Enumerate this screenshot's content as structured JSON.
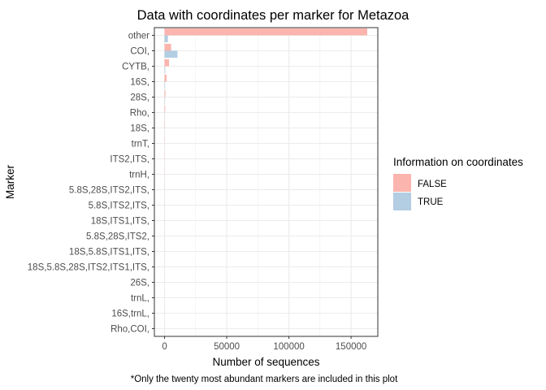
{
  "chart_data": {
    "type": "bar",
    "orientation": "horizontal",
    "position": "dodge",
    "title": "Data with coordinates per marker for Metazoa",
    "xlabel": "Number of sequences",
    "ylabel": "Marker",
    "caption": "*Only the twenty most abundant markers are included in this plot",
    "categories": [
      "other",
      "COI,",
      "CYTB,",
      "16S,",
      "28S,",
      "Rho,",
      "18S,",
      "trnT,",
      "ITS2,ITS,",
      "trnH,",
      "5.8S,28S,ITS2,ITS,",
      "5.8S,ITS2,ITS,",
      "18S,ITS1,ITS,",
      "5.8S,28S,ITS2,",
      "18S,5.8S,ITS1,ITS,",
      "18S,5.8S,28S,ITS2,ITS1,ITS,",
      "26S,",
      "trnL,",
      "16S,trnL,",
      "Rho,COI,"
    ],
    "series": [
      {
        "name": "FALSE",
        "color": "#FBB4AE",
        "values": [
          163000,
          5300,
          3600,
          1600,
          700,
          500,
          250,
          150,
          120,
          100,
          90,
          80,
          70,
          60,
          50,
          45,
          40,
          30,
          25,
          20
        ]
      },
      {
        "name": "TRUE",
        "color": "#B3CDE3",
        "values": [
          2700,
          10400,
          500,
          400,
          300,
          150,
          80,
          60,
          40,
          40,
          30,
          30,
          25,
          20,
          20,
          15,
          15,
          10,
          10,
          5
        ]
      }
    ],
    "xticks": [
      0,
      50000,
      100000,
      150000
    ],
    "xlim": [
      -8200,
      171500
    ],
    "legend": {
      "title": "Information on coordinates",
      "position": "right"
    },
    "grid": true,
    "background": "#ffffff",
    "gridline_color": "#ebebeb",
    "border_color": "#333333"
  }
}
